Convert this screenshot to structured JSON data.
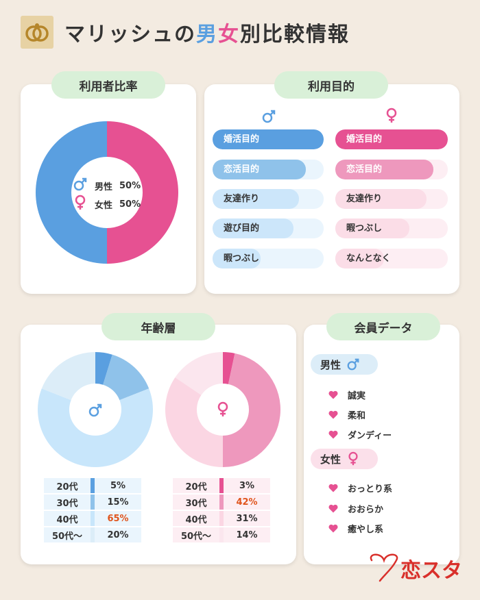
{
  "header": {
    "title_prefix": "マリッシュの",
    "title_male": "男",
    "title_female": "女",
    "title_suffix": "別比較情報"
  },
  "ratio_section": {
    "label": "利用者比率",
    "male_label": "男性",
    "male_value": "50%",
    "female_label": "女性",
    "female_value": "50%"
  },
  "purpose_section": {
    "label": "利用目的",
    "male": [
      "婚活目的",
      "恋活目的",
      "友達作り",
      "遊び目的",
      "暇つぶし"
    ],
    "female": [
      "婚活目的",
      "恋活目的",
      "友達作り",
      "暇つぶし",
      "なんとなく"
    ]
  },
  "age_section": {
    "label": "年齢層",
    "male_rows": [
      {
        "age": "20代",
        "pct": "5%"
      },
      {
        "age": "30代",
        "pct": "15%"
      },
      {
        "age": "40代",
        "pct": "65%"
      },
      {
        "age": "50代〜",
        "pct": "20%"
      }
    ],
    "female_rows": [
      {
        "age": "20代",
        "pct": "3%"
      },
      {
        "age": "30代",
        "pct": "42%"
      },
      {
        "age": "40代",
        "pct": "31%"
      },
      {
        "age": "50代〜",
        "pct": "14%"
      }
    ]
  },
  "member_section": {
    "label": "会員データ",
    "male_label": "男性",
    "male_traits": [
      "誠実",
      "柔和",
      "ダンディー"
    ],
    "female_label": "女性",
    "female_traits": [
      "おっとり系",
      "おおらか",
      "癒やし系"
    ]
  },
  "brand": "恋スタ",
  "colors": {
    "male": "#5a9fe0",
    "female": "#e65192",
    "highlight": "#e0541c",
    "pill_bg": "#d9f0d8",
    "background": "#f3ebe1"
  },
  "chart_data": [
    {
      "type": "pie",
      "title": "利用者比率",
      "categories": [
        "男性",
        "女性"
      ],
      "values": [
        50,
        50
      ]
    },
    {
      "type": "bar",
      "title": "利用目的",
      "series": [
        {
          "name": "男性",
          "categories": [
            "婚活目的",
            "恋活目的",
            "友達作り",
            "遊び目的",
            "暇つぶし"
          ],
          "values": [
            100,
            84,
            78,
            73,
            43
          ]
        },
        {
          "name": "女性",
          "categories": [
            "婚活目的",
            "恋活目的",
            "友達作り",
            "暇つぶし",
            "なんとなく"
          ],
          "values": [
            100,
            87,
            81,
            66,
            43
          ]
        }
      ],
      "note": "relative bar lengths estimated, no numeric labels shown"
    },
    {
      "type": "pie",
      "title": "年齢層",
      "series": [
        {
          "name": "男性",
          "categories": [
            "20代",
            "30代",
            "40代",
            "50代〜"
          ],
          "values": [
            5,
            15,
            65,
            20
          ]
        },
        {
          "name": "女性",
          "categories": [
            "20代",
            "30代",
            "40代",
            "50代〜"
          ],
          "values": [
            3,
            42,
            31,
            14
          ]
        }
      ]
    }
  ]
}
